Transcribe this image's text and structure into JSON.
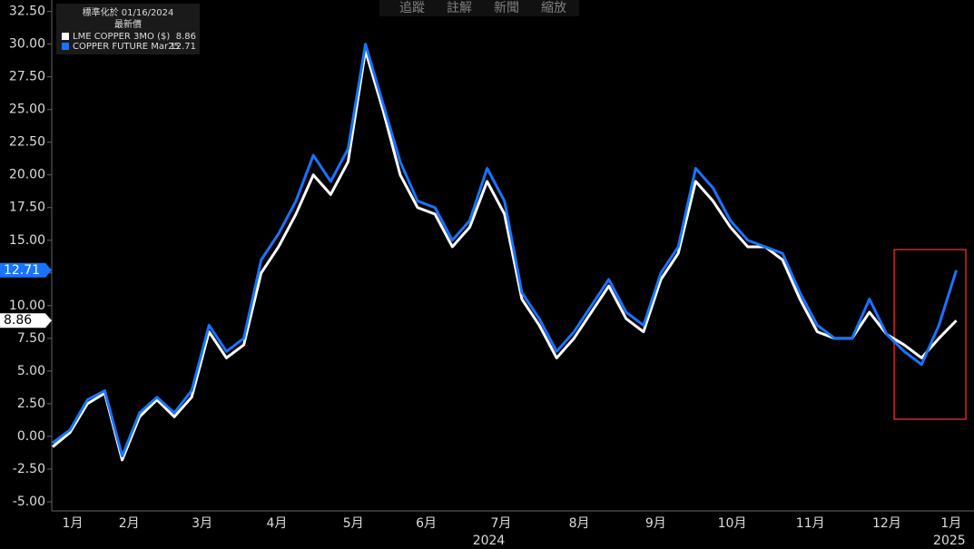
{
  "chart_data": {
    "type": "line",
    "legend": {
      "title": "標準化於 01/16/2024",
      "subtitle": "最新價"
    },
    "toolbar": [
      "追蹤",
      "註解",
      "新聞",
      "縮放"
    ],
    "x": [
      0,
      1,
      2,
      3,
      4,
      5,
      6,
      7,
      8,
      9,
      10,
      11,
      12,
      13,
      14,
      15,
      16,
      17,
      18,
      19,
      20,
      21,
      22,
      23,
      24,
      25,
      26,
      27,
      28,
      29,
      30,
      31,
      32,
      33,
      34,
      35,
      36,
      37,
      38,
      39,
      40,
      41,
      42,
      43,
      44,
      45,
      46,
      47,
      48,
      49,
      50,
      51,
      52
    ],
    "series": [
      {
        "name": "LME COPPER 3MO ($)",
        "color": "#ffffff",
        "values": [
          -0.8,
          0.3,
          2.5,
          3.3,
          -1.8,
          1.5,
          2.8,
          1.5,
          3.0,
          8.0,
          6.0,
          7.0,
          12.5,
          14.5,
          17,
          20,
          18.5,
          21,
          29.5,
          25,
          20,
          17.5,
          17,
          14.5,
          16,
          19.5,
          17,
          10.5,
          8.5,
          6,
          7.5,
          9.5,
          11.5,
          9,
          8,
          12,
          14,
          19.5,
          18,
          16,
          14.5,
          14.5,
          13.5,
          10.5,
          8.0,
          7.5,
          7.5,
          9.5,
          7.8,
          7,
          6,
          7.5,
          8.86
        ]
      },
      {
        "name": "COPPER FUTURE Mar25",
        "color": "#1a73ff",
        "values": [
          -0.5,
          0.5,
          2.8,
          3.5,
          -1.5,
          1.8,
          3.0,
          1.8,
          3.5,
          8.5,
          6.5,
          7.5,
          13.5,
          15.5,
          18,
          21.5,
          19.5,
          22,
          30,
          25.5,
          21,
          18,
          17.5,
          15,
          16.5,
          20.5,
          18,
          11,
          9,
          6.5,
          8,
          10,
          12,
          9.5,
          8.5,
          12.5,
          14.5,
          20.5,
          19,
          16.5,
          15,
          14.5,
          14,
          11,
          8.5,
          7.5,
          7.5,
          10.5,
          7.8,
          6.5,
          5.5,
          8.5,
          12.71
        ]
      }
    ],
    "xlim": [
      0,
      52.6
    ],
    "xticks": [
      {
        "value": 1.15,
        "label": "1月"
      },
      {
        "value": 4.4,
        "label": "2月"
      },
      {
        "value": 8.6,
        "label": "3月"
      },
      {
        "value": 12.9,
        "label": "4月"
      },
      {
        "value": 17.3,
        "label": "5月"
      },
      {
        "value": 21.5,
        "label": "6月"
      },
      {
        "value": 25.8,
        "label": "7月"
      },
      {
        "value": 30.3,
        "label": "8月"
      },
      {
        "value": 34.7,
        "label": "9月"
      },
      {
        "value": 39.1,
        "label": "10月"
      },
      {
        "value": 43.6,
        "label": "11月"
      },
      {
        "value": 48.0,
        "label": "12月"
      },
      {
        "value": 51.7,
        "label": "1月"
      }
    ],
    "year_ticks": [
      {
        "value": 25.1,
        "label": "2024"
      },
      {
        "value": 51.6,
        "label": "2025"
      }
    ],
    "ylim": [
      -5.8,
      33.2
    ],
    "yticks": [
      {
        "value": 32.5,
        "label": "32.50"
      },
      {
        "value": 30,
        "label": "30.00"
      },
      {
        "value": 27.5,
        "label": "27.50"
      },
      {
        "value": 25,
        "label": "25.00"
      },
      {
        "value": 22.5,
        "label": "22.50"
      },
      {
        "value": 20,
        "label": "20.00"
      },
      {
        "value": 17.5,
        "label": "17.50"
      },
      {
        "value": 15,
        "label": "15.00"
      },
      {
        "value": 12.5,
        "label": "12.50"
      },
      {
        "value": 10,
        "label": "10.00"
      },
      {
        "value": 7.5,
        "label": "7.50"
      },
      {
        "value": 5,
        "label": "5.00"
      },
      {
        "value": 2.5,
        "label": "2.50"
      },
      {
        "value": 0,
        "label": "0.00"
      },
      {
        "value": -2.5,
        "label": "-2.50"
      },
      {
        "value": -5,
        "label": "-5.00"
      }
    ]
  }
}
